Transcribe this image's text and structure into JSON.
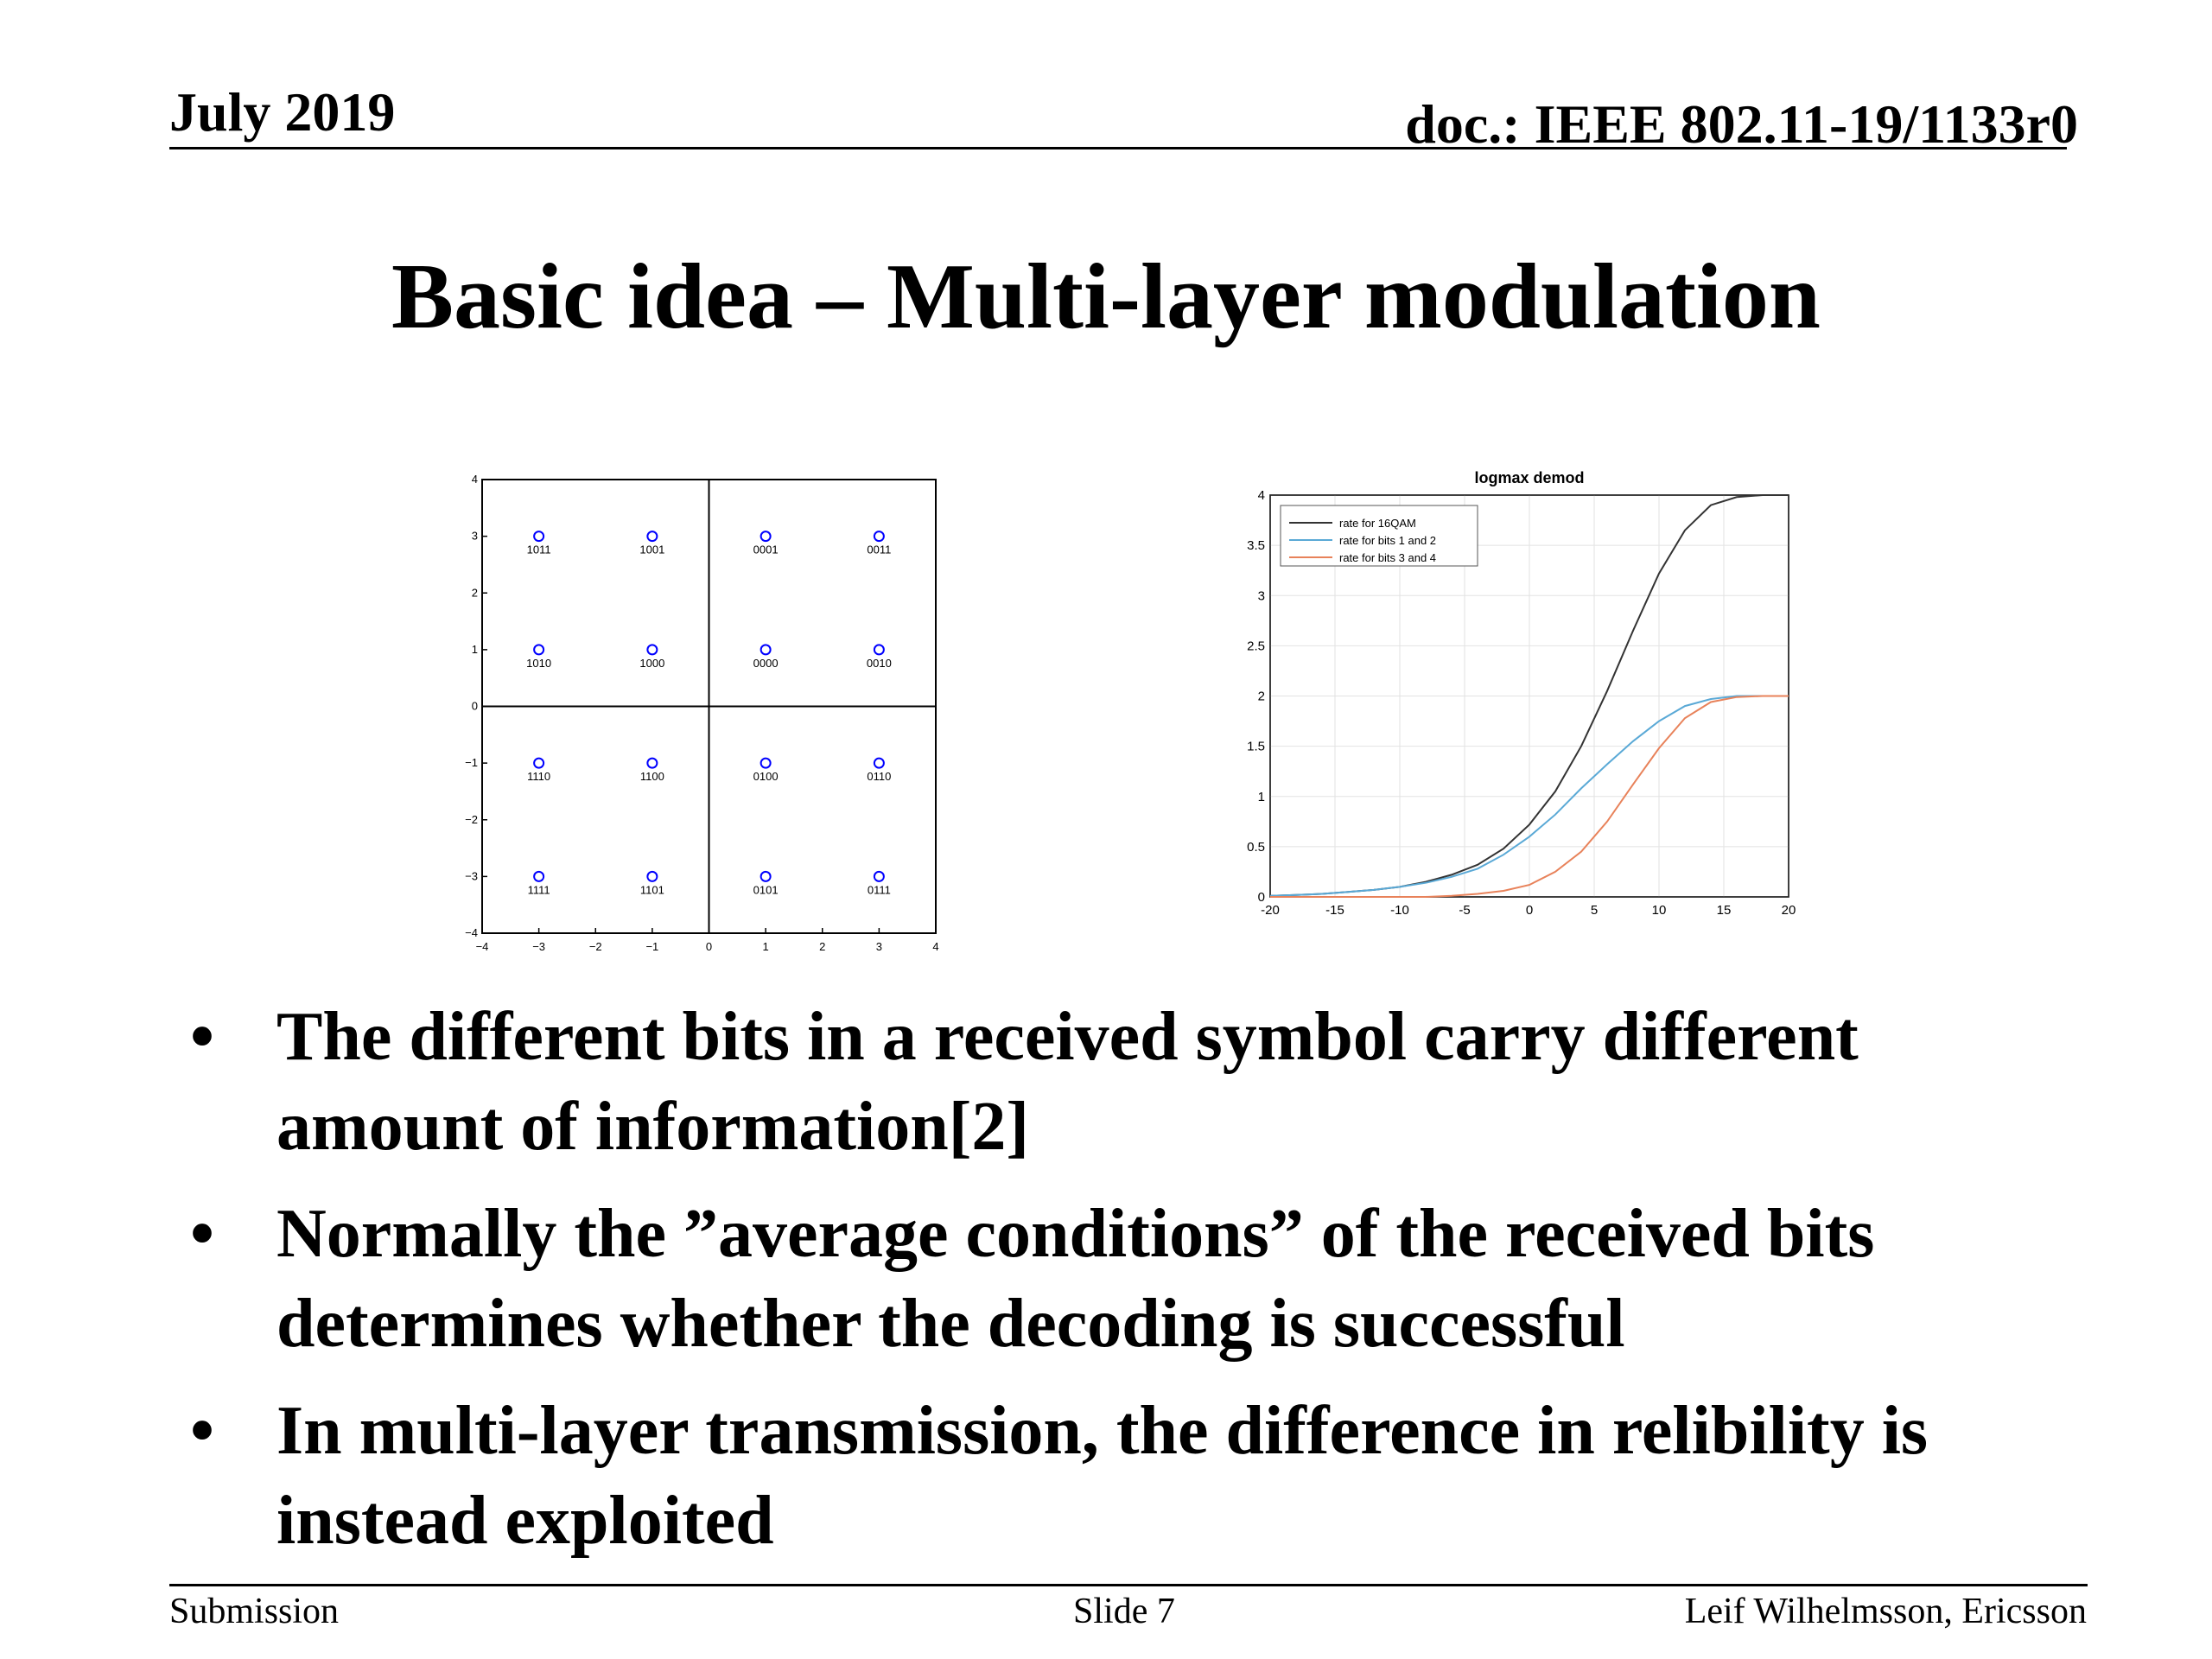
{
  "header": {
    "date": "July 2019",
    "doc": "doc.: IEEE 802.11-19/1133r0"
  },
  "title": "Basic idea – Multi-layer modulation",
  "bullets": [
    "The different bits in a received symbol carry different amount of information[2]",
    "Normally the ”average conditions” of the received bits determines whether the decoding is successful",
    "In multi-layer transmission, the difference in relibility is instead exploited"
  ],
  "footer": {
    "left": "Submission",
    "center": "Slide 7",
    "right": "Leif Wilhelmsson, Ericsson"
  },
  "chart_data": [
    {
      "type": "scatter",
      "title": "",
      "xlabel": "",
      "ylabel": "",
      "xlim": [
        -4,
        4
      ],
      "ylim": [
        -4,
        4
      ],
      "xticks": [
        "−4",
        "−3",
        "−2",
        "−1",
        "0",
        "1",
        "2",
        "3",
        "4"
      ],
      "yticks": [
        "−4",
        "−3",
        "−2",
        "−1",
        "0",
        "1",
        "2",
        "3",
        "4"
      ],
      "grid": false,
      "point_color": "#0000ff",
      "points": [
        {
          "x": -3,
          "y": 3,
          "label": "1011"
        },
        {
          "x": -1,
          "y": 3,
          "label": "1001"
        },
        {
          "x": 1,
          "y": 3,
          "label": "0001"
        },
        {
          "x": 3,
          "y": 3,
          "label": "0011"
        },
        {
          "x": -3,
          "y": 1,
          "label": "1010"
        },
        {
          "x": -1,
          "y": 1,
          "label": "1000"
        },
        {
          "x": 1,
          "y": 1,
          "label": "0000"
        },
        {
          "x": 3,
          "y": 1,
          "label": "0010"
        },
        {
          "x": -3,
          "y": -1,
          "label": "1110"
        },
        {
          "x": -1,
          "y": -1,
          "label": "1100"
        },
        {
          "x": 1,
          "y": -1,
          "label": "0100"
        },
        {
          "x": 3,
          "y": -1,
          "label": "0110"
        },
        {
          "x": -3,
          "y": -3,
          "label": "1111"
        },
        {
          "x": -1,
          "y": -3,
          "label": "1101"
        },
        {
          "x": 1,
          "y": -3,
          "label": "0101"
        },
        {
          "x": 3,
          "y": -3,
          "label": "0111"
        }
      ]
    },
    {
      "type": "line",
      "title": "logmax demod",
      "xlabel": "",
      "ylabel": "",
      "xlim": [
        -20,
        20
      ],
      "ylim": [
        0,
        4
      ],
      "xticks": [
        "-20",
        "-15",
        "-10",
        "-5",
        "0",
        "5",
        "10",
        "15",
        "20"
      ],
      "yticks": [
        "0",
        "0.5",
        "1",
        "1.5",
        "2",
        "2.5",
        "3",
        "3.5",
        "4"
      ],
      "grid": true,
      "legend_position": "top-left",
      "x": [
        -20,
        -18,
        -16,
        -14,
        -12,
        -10,
        -8,
        -6,
        -4,
        -2,
        0,
        2,
        4,
        6,
        8,
        10,
        12,
        14,
        16,
        18,
        20
      ],
      "series": [
        {
          "name": "rate for 16QAM",
          "color": "#333333",
          "values": [
            0.01,
            0.02,
            0.03,
            0.05,
            0.07,
            0.1,
            0.15,
            0.22,
            0.32,
            0.48,
            0.72,
            1.05,
            1.5,
            2.05,
            2.65,
            3.22,
            3.65,
            3.9,
            3.98,
            4.0,
            4.0
          ]
        },
        {
          "name": "rate for bits 1 and 2",
          "color": "#5aa9d6",
          "values": [
            0.01,
            0.02,
            0.03,
            0.05,
            0.07,
            0.1,
            0.14,
            0.2,
            0.28,
            0.42,
            0.6,
            0.82,
            1.08,
            1.32,
            1.55,
            1.75,
            1.9,
            1.97,
            2.0,
            2.0,
            2.0
          ]
        },
        {
          "name": "rate for bits 3 and 4",
          "color": "#e8825a",
          "values": [
            0.0,
            0.0,
            0.0,
            0.0,
            0.0,
            0.0,
            0.0,
            0.01,
            0.03,
            0.06,
            0.12,
            0.25,
            0.45,
            0.75,
            1.12,
            1.48,
            1.78,
            1.94,
            1.99,
            2.0,
            2.0
          ]
        }
      ]
    }
  ]
}
